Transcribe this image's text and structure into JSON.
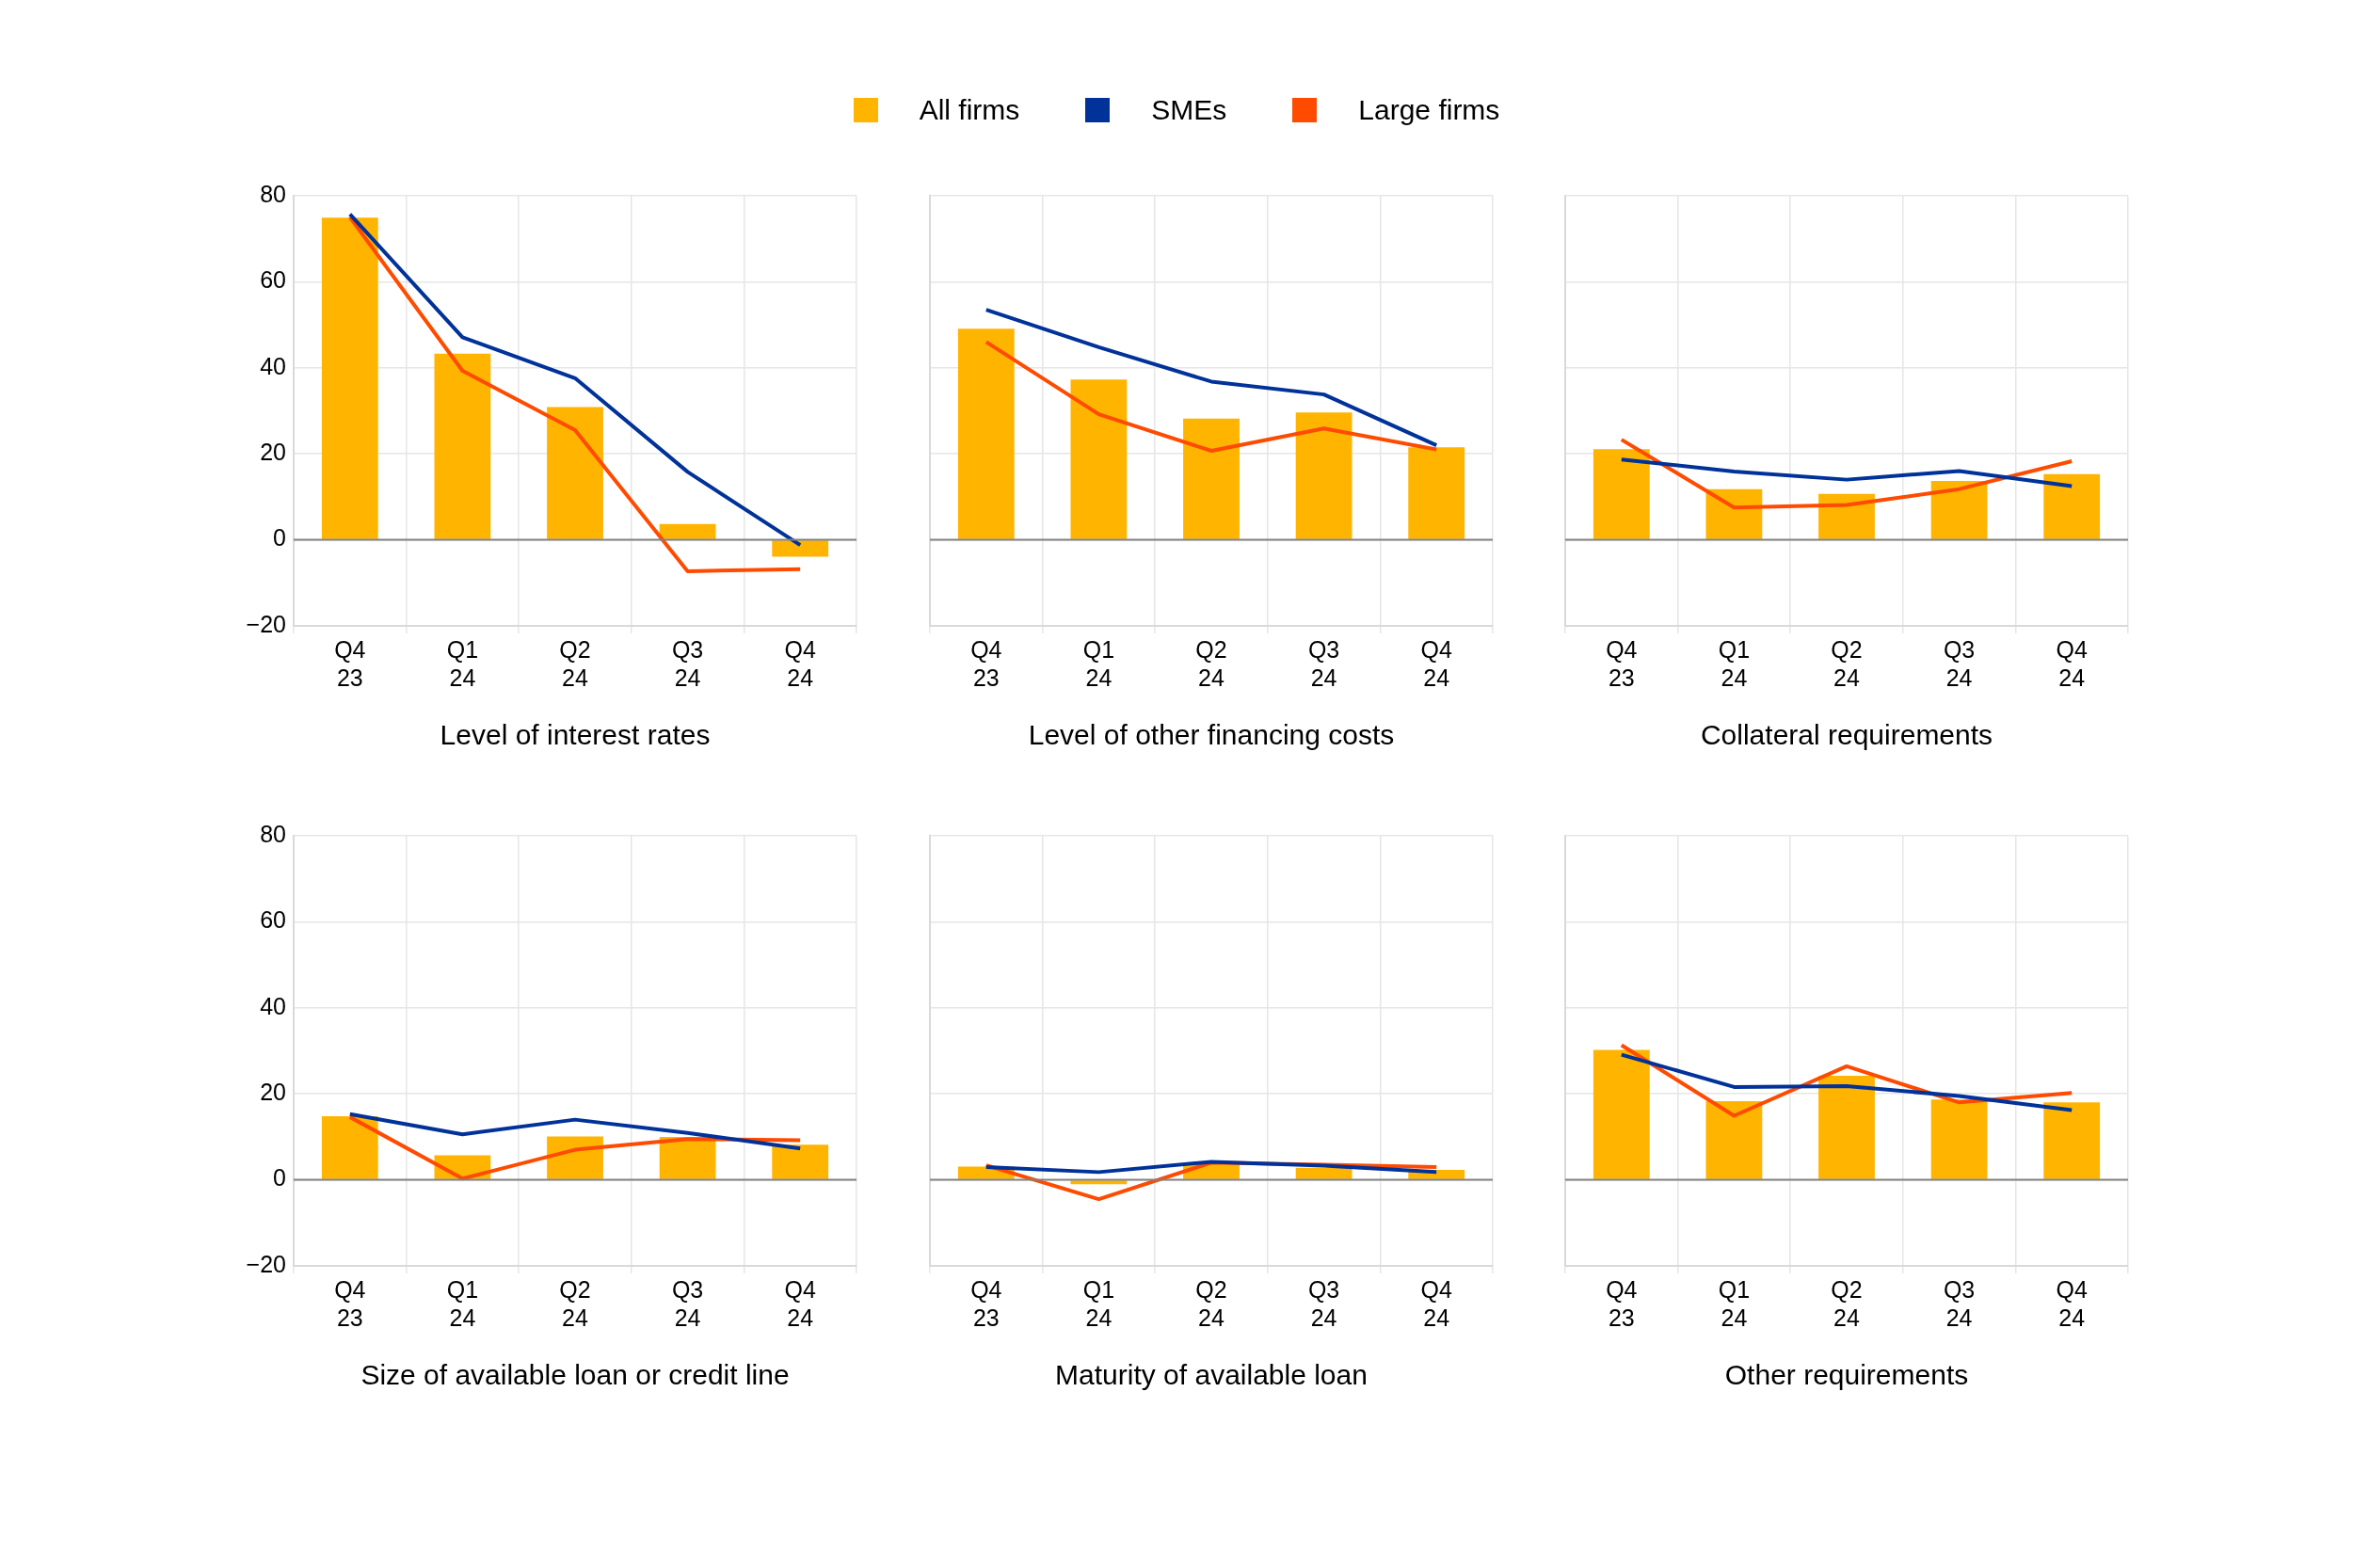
{
  "chart_data": [
    {
      "type": "bar",
      "xlabel": "Level of interest rates",
      "categories": [
        "Q4 23",
        "Q1 24",
        "Q2 24",
        "Q3 24",
        "Q4 24"
      ],
      "ylim": [
        -20,
        80
      ],
      "yticks": [
        {
          "value": -20,
          "label": "−20"
        },
        0,
        20,
        40,
        60,
        80
      ],
      "grid": true,
      "legend": "top",
      "marker": "none",
      "ref_lines": [
        {
          "axis": "y",
          "value": 0,
          "color": "#808080"
        }
      ],
      "series": [
        {
          "name": "All firms",
          "color": "#ffb400",
          "values": [
            74.9,
            43.3,
            30.9,
            3.7,
            -3.9
          ]
        },
        {
          "name": "SMEs",
          "type": "line",
          "color": "#003299",
          "values": [
            75.7,
            47.1,
            37.6,
            15.8,
            -1.2
          ]
        },
        {
          "name": "Large firms",
          "type": "line",
          "color": "#ff4b00",
          "values": [
            75,
            39.3,
            25.5,
            -7.3,
            -6.8
          ]
        }
      ]
    },
    {
      "type": "bar",
      "xlabel": "Level of other financing costs",
      "categories": [
        "Q4 23",
        "Q1 24",
        "Q2 24",
        "Q3 24",
        "Q4 24"
      ],
      "ylim": [
        -20,
        80
      ],
      "yticks": [
        -20,
        0,
        20,
        40,
        60,
        80
      ],
      "tick_labels": "x",
      "grid": true,
      "marker": "none",
      "ref_lines": [
        {
          "axis": "y",
          "value": 0,
          "color": "#808080"
        }
      ],
      "series": [
        {
          "color": "#ffb400",
          "values": [
            49.1,
            37.3,
            28.2,
            29.6,
            21.5
          ]
        },
        {
          "type": "line",
          "color": "#003299",
          "values": [
            53.5,
            44.8,
            36.8,
            33.8,
            22
          ]
        },
        {
          "type": "line",
          "color": "#ff4b00",
          "values": [
            46,
            29.2,
            20.7,
            25.9,
            21
          ]
        }
      ]
    },
    {
      "type": "bar",
      "xlabel": "Collateral requirements",
      "categories": [
        "Q4 23",
        "Q1 24",
        "Q2 24",
        "Q3 24",
        "Q4 24"
      ],
      "ylim": [
        -20,
        80
      ],
      "yticks": [
        -20,
        0,
        20,
        40,
        60,
        80
      ],
      "tick_labels": "x",
      "grid": true,
      "marker": "none",
      "ref_lines": [
        {
          "axis": "y",
          "value": 0,
          "color": "#808080"
        }
      ],
      "series": [
        {
          "color": "#ffb400",
          "values": [
            21.1,
            11.8,
            10.7,
            13.7,
            15.3
          ]
        },
        {
          "type": "line",
          "color": "#003299",
          "values": [
            18.7,
            15.9,
            14,
            16,
            12.5
          ]
        },
        {
          "type": "line",
          "color": "#ff4b00",
          "values": [
            23.3,
            7.5,
            8.1,
            11.8,
            18.3
          ]
        }
      ]
    },
    {
      "type": "bar",
      "xlabel": "Size of available loan or credit line",
      "categories": [
        "Q4 23",
        "Q1 24",
        "Q2 24",
        "Q3 24",
        "Q4 24"
      ],
      "ylim": [
        -20,
        80
      ],
      "yticks": [
        {
          "value": -20,
          "label": "−20"
        },
        0,
        20,
        40,
        60,
        80
      ],
      "grid": true,
      "marker": "none",
      "ref_lines": [
        {
          "axis": "y",
          "value": 0,
          "color": "#808080"
        }
      ],
      "series": [
        {
          "color": "#ffb400",
          "values": [
            14.8,
            5.7,
            10.1,
            10,
            8.2
          ]
        },
        {
          "type": "line",
          "color": "#003299",
          "values": [
            15.3,
            10.6,
            14,
            10.9,
            7.3
          ]
        },
        {
          "type": "line",
          "color": "#ff4b00",
          "values": [
            14.6,
            0.3,
            7,
            9.5,
            9.2
          ]
        }
      ]
    },
    {
      "type": "bar",
      "xlabel": "Maturity of available loan",
      "categories": [
        "Q4 23",
        "Q1 24",
        "Q2 24",
        "Q3 24",
        "Q4 24"
      ],
      "ylim": [
        -20,
        80
      ],
      "yticks": [
        -20,
        0,
        20,
        40,
        60,
        80
      ],
      "tick_labels": "x",
      "grid": true,
      "marker": "none",
      "ref_lines": [
        {
          "axis": "y",
          "value": 0,
          "color": "#808080"
        }
      ],
      "series": [
        {
          "color": "#ffb400",
          "values": [
            3.1,
            -1,
            3.8,
            2.8,
            2.3
          ]
        },
        {
          "type": "line",
          "color": "#003299",
          "values": [
            3,
            1.8,
            4.2,
            3.3,
            1.8
          ]
        },
        {
          "type": "line",
          "color": "#ff4b00",
          "values": [
            3.4,
            -4.5,
            4,
            3.5,
            3
          ]
        }
      ]
    },
    {
      "type": "bar",
      "xlabel": "Other requirements",
      "categories": [
        "Q4 23",
        "Q1 24",
        "Q2 24",
        "Q3 24",
        "Q4 24"
      ],
      "ylim": [
        -20,
        80
      ],
      "yticks": [
        -20,
        0,
        20,
        40,
        60,
        80
      ],
      "tick_labels": "x",
      "grid": true,
      "marker": "none",
      "ref_lines": [
        {
          "axis": "y",
          "value": 0,
          "color": "#808080"
        }
      ],
      "series": [
        {
          "color": "#ffb400",
          "values": [
            30.2,
            18.3,
            24.2,
            18.7,
            18
          ]
        },
        {
          "type": "line",
          "color": "#003299",
          "values": [
            29.1,
            21.6,
            21.8,
            19.5,
            16.2
          ]
        },
        {
          "type": "line",
          "color": "#ff4b00",
          "values": [
            31.3,
            14.9,
            26.4,
            18,
            20.2
          ]
        }
      ]
    }
  ]
}
